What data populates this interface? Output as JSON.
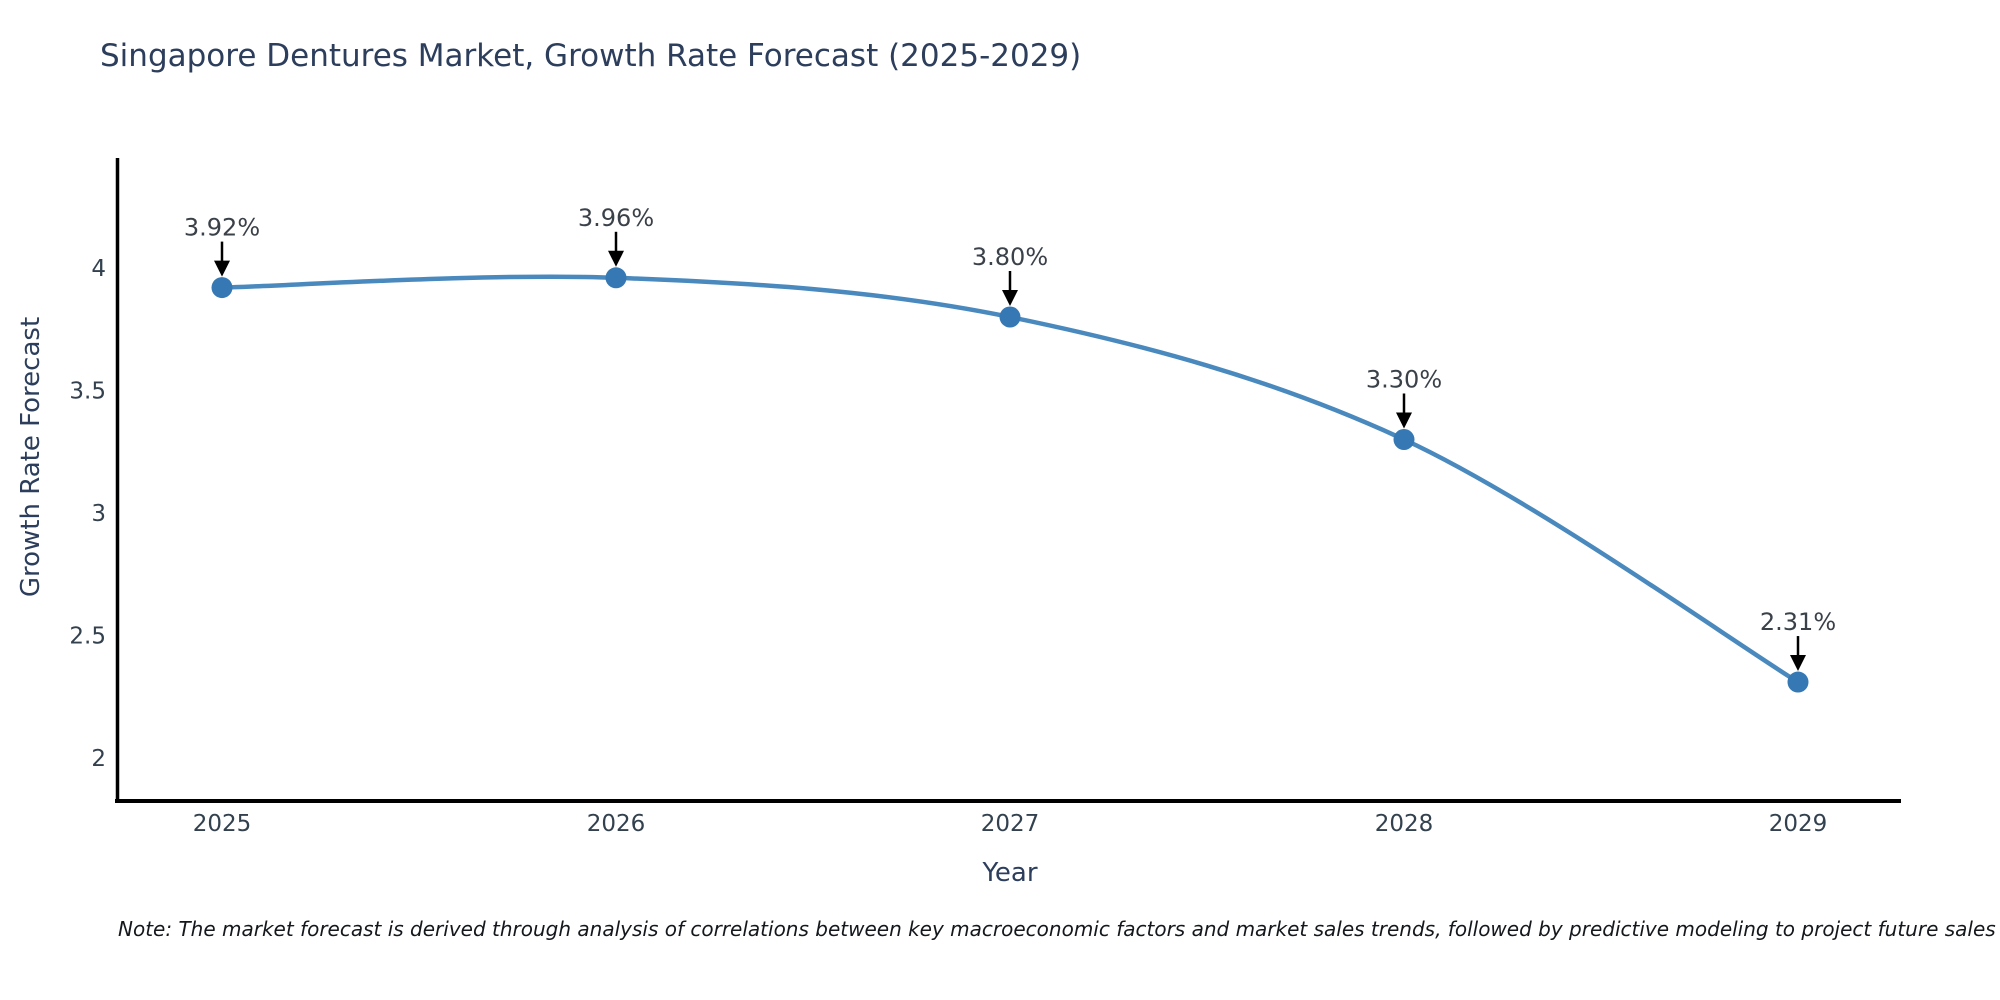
{
  "chart_data": {
    "type": "line",
    "title": "Singapore Dentures Market, Growth Rate Forecast (2025-2029)",
    "xlabel": "Year",
    "ylabel": "Growth Rate Forecast",
    "categories": [
      "2025",
      "2026",
      "2027",
      "2028",
      "2029"
    ],
    "values": [
      3.92,
      3.96,
      3.8,
      3.3,
      2.31
    ],
    "point_labels": [
      "3.92%",
      "3.96%",
      "3.80%",
      "3.30%",
      "2.31%"
    ],
    "y_ticks": [
      4,
      3.5,
      3,
      2.5,
      2
    ],
    "y_tick_labels": [
      "4",
      "3.5",
      "3",
      "2.5",
      "2"
    ],
    "ylim": [
      1.87,
      4.45
    ],
    "grid": false,
    "legend": "none",
    "smooth_curve": true,
    "colors": {
      "line": "#4a89bd",
      "marker": "#3578b3",
      "axis": "#000000",
      "arrow": "#000000",
      "title_text": "#2c3e5c",
      "tick_text": "#33414f",
      "annotation_text": "#3a4149"
    }
  },
  "note": {
    "text": "Note: The market forecast is derived through analysis of correlations between key macroeconomic factors and market sales trends, followed by predictive modeling to project future sales"
  }
}
